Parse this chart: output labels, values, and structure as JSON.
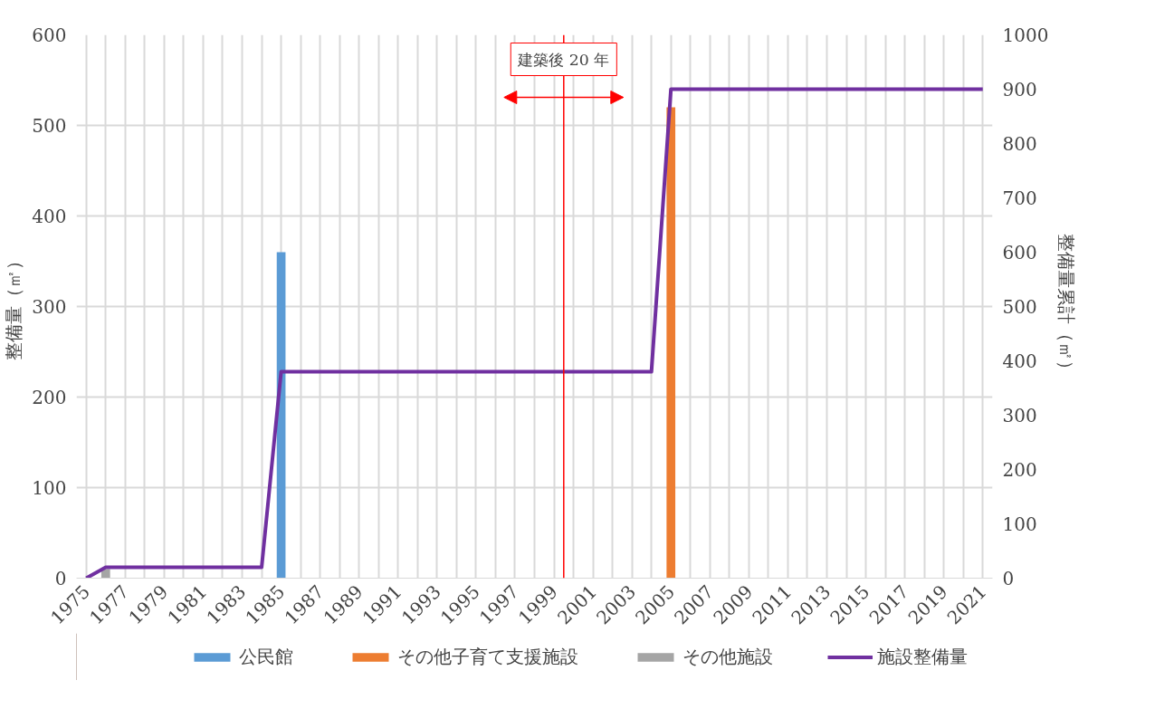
{
  "chart_data": {
    "type": "bar",
    "xlim": [
      1974.5,
      2021.5
    ],
    "xticks": [
      {
        "value": 1975,
        "label": "1975"
      },
      {
        "value": 1976,
        "label": null
      },
      {
        "value": 1977,
        "label": "1977"
      },
      {
        "value": 1978,
        "label": null
      },
      {
        "value": 1979,
        "label": "1979"
      },
      {
        "value": 1980,
        "label": null
      },
      {
        "value": 1981,
        "label": "1981"
      },
      {
        "value": 1982,
        "label": null
      },
      {
        "value": 1983,
        "label": "1983"
      },
      {
        "value": 1984,
        "label": null
      },
      {
        "value": 1985,
        "label": "1985"
      },
      {
        "value": 1986,
        "label": null
      },
      {
        "value": 1987,
        "label": "1987"
      },
      {
        "value": 1988,
        "label": null
      },
      {
        "value": 1989,
        "label": "1989"
      },
      {
        "value": 1990,
        "label": null
      },
      {
        "value": 1991,
        "label": "1991"
      },
      {
        "value": 1992,
        "label": null
      },
      {
        "value": 1993,
        "label": "1993"
      },
      {
        "value": 1994,
        "label": null
      },
      {
        "value": 1995,
        "label": "1995"
      },
      {
        "value": 1996,
        "label": null
      },
      {
        "value": 1997,
        "label": "1997"
      },
      {
        "value": 1998,
        "label": null
      },
      {
        "value": 1999,
        "label": "1999"
      },
      {
        "value": 2000,
        "label": null
      },
      {
        "value": 2001,
        "label": "2001"
      },
      {
        "value": 2002,
        "label": null
      },
      {
        "value": 2003,
        "label": "2003"
      },
      {
        "value": 2004,
        "label": null
      },
      {
        "value": 2005,
        "label": "2005"
      },
      {
        "value": 2006,
        "label": null
      },
      {
        "value": 2007,
        "label": "2007"
      },
      {
        "value": 2008,
        "label": null
      },
      {
        "value": 2009,
        "label": "2009"
      },
      {
        "value": 2010,
        "label": null
      },
      {
        "value": 2011,
        "label": "2011"
      },
      {
        "value": 2012,
        "label": null
      },
      {
        "value": 2013,
        "label": "2013"
      },
      {
        "value": 2014,
        "label": null
      },
      {
        "value": 2015,
        "label": "2015"
      },
      {
        "value": 2016,
        "label": null
      },
      {
        "value": 2017,
        "label": "2017"
      },
      {
        "value": 2018,
        "label": null
      },
      {
        "value": 2019,
        "label": "2019"
      },
      {
        "value": 2020,
        "label": null
      },
      {
        "value": 2021,
        "label": "2021"
      }
    ],
    "ylim": [
      0,
      600
    ],
    "yticks": [
      0,
      100,
      200,
      300,
      400,
      500,
      600
    ],
    "y2lim": [
      0,
      1000
    ],
    "y2ticks": [
      0,
      100,
      200,
      300,
      400,
      500,
      600,
      700,
      800,
      900,
      1000
    ],
    "ylabel": "整備量（㎡）",
    "y2label": "整備量累計（㎡）",
    "series": [
      {
        "name": "公民館",
        "color": "#5b9bd5",
        "x": [
          1985
        ],
        "values": [
          360
        ]
      },
      {
        "name": "その他子育て支援施設",
        "color": "#ed7d31",
        "x": [
          2005
        ],
        "values": [
          520
        ]
      },
      {
        "name": "その他施設",
        "color": "#a5a5a5",
        "x": [
          1976
        ],
        "values": [
          10
        ]
      },
      {
        "name": "施設整備量",
        "type": "line",
        "axis": "y2",
        "color": "#7030a0",
        "x": [
          1975,
          1976,
          1984,
          1985,
          2004,
          2005,
          2021
        ],
        "values": [
          0,
          20,
          20,
          380,
          380,
          900,
          900
        ]
      }
    ],
    "ref_lines": [
      {
        "axis": "x",
        "value": 1999.5,
        "label": "建築後 20 年",
        "color": "#ff0000"
      }
    ],
    "grid": true,
    "legend": "bottom"
  }
}
